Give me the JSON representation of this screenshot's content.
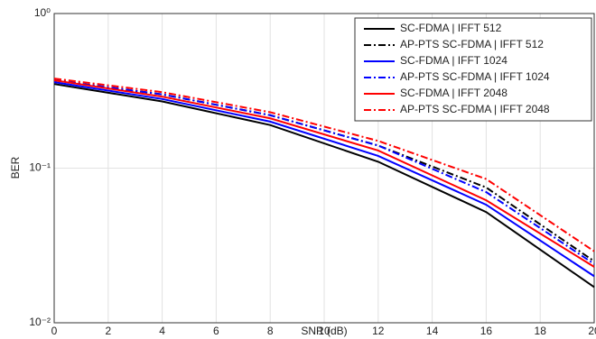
{
  "chart_data": {
    "type": "line",
    "x_label": "SNR (dB)",
    "y_label": "BER",
    "x": [
      0,
      4,
      8,
      12,
      16,
      20
    ],
    "series": [
      {
        "name": "SC-FDMA | IFFT 512",
        "color": "#000000",
        "dash": false,
        "values": [
          0.35,
          0.27,
          0.19,
          0.11,
          0.052,
          0.017
        ]
      },
      {
        "name": "AP-PTS SC-FDMA | IFFT 512",
        "color": "#000000",
        "dash": true,
        "values": [
          0.37,
          0.3,
          0.22,
          0.14,
          0.075,
          0.025
        ]
      },
      {
        "name": "SC-FDMA | IFFT 1024",
        "color": "#0000ff",
        "dash": false,
        "values": [
          0.36,
          0.28,
          0.2,
          0.12,
          0.058,
          0.02
        ]
      },
      {
        "name": "AP-PTS SC-FDMA | IFFT 1024",
        "color": "#0000ff",
        "dash": true,
        "values": [
          0.37,
          0.3,
          0.22,
          0.14,
          0.07,
          0.024
        ]
      },
      {
        "name": "SC-FDMA | IFFT 2048",
        "color": "#ff0000",
        "dash": false,
        "values": [
          0.37,
          0.29,
          0.21,
          0.13,
          0.062,
          0.023
        ]
      },
      {
        "name": "AP-PTS SC-FDMA | IFFT 2048",
        "color": "#ff0000",
        "dash": true,
        "values": [
          0.38,
          0.31,
          0.23,
          0.15,
          0.085,
          0.029
        ]
      }
    ],
    "xlim": [
      0,
      20
    ],
    "xticks": [
      0,
      2,
      4,
      6,
      8,
      10,
      12,
      14,
      16,
      18,
      20
    ],
    "ylim": [
      0.01,
      1
    ],
    "log_y": true,
    "yticks": [
      {
        "value": 0.01,
        "label": "10⁻²"
      },
      {
        "value": 0.1,
        "label": "10⁻¹"
      },
      {
        "value": 1,
        "label": "10⁰"
      }
    ],
    "grid": true,
    "legend": "upper-right"
  }
}
